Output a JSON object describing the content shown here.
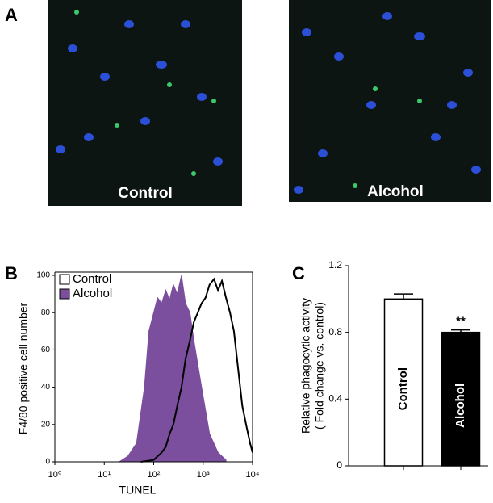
{
  "panel_labels": [
    "A",
    "B",
    "C"
  ],
  "images": [
    {
      "label": "Control"
    },
    {
      "label": "Alcohol"
    }
  ],
  "chart_data": [
    {
      "type": "histogram-line",
      "ylabel": "F4/80 positive cell number",
      "xlabel": "TUNEL",
      "xlog": true,
      "xlim": [
        1,
        10000
      ],
      "xticks": [
        {
          "value": 1,
          "label": "10⁰"
        },
        {
          "value": 10,
          "label": "10¹"
        },
        {
          "value": 100,
          "label": "10²"
        },
        {
          "value": 1000,
          "label": "10³"
        },
        {
          "value": 10000,
          "label": "10⁴"
        }
      ],
      "ylim": [
        0,
        100
      ],
      "yticks": [
        0,
        20,
        40,
        60,
        80,
        100
      ],
      "legend": "upper-left",
      "series": [
        {
          "name": "Control",
          "color": "#000000",
          "fill": "none",
          "x": [
            55,
            100,
            145,
            175,
            210,
            250,
            300,
            365,
            440,
            540,
            650,
            780,
            930,
            1120,
            1350,
            1660,
            2000,
            2400,
            2900,
            3500,
            4200,
            5100,
            6200,
            7400,
            8900,
            10000
          ],
          "values": [
            0,
            1,
            5,
            8,
            15,
            20,
            30,
            40,
            55,
            65,
            75,
            80,
            85,
            88,
            95,
            98,
            92,
            97,
            88,
            80,
            70,
            50,
            30,
            20,
            10,
            5
          ]
        },
        {
          "name": "Alcohol",
          "color": "#7b4f9d",
          "fill": "#7b4f9d",
          "x": [
            20,
            30,
            45,
            65,
            80,
            100,
            120,
            145,
            175,
            210,
            250,
            300,
            365,
            440,
            540,
            650,
            930,
            1350,
            2000,
            2900
          ],
          "values": [
            0,
            3,
            10,
            40,
            70,
            80,
            88,
            85,
            92,
            87,
            95,
            90,
            100,
            85,
            80,
            65,
            40,
            15,
            5,
            1
          ]
        }
      ]
    },
    {
      "type": "bar",
      "ylabel": [
        "Relative phagocytic activity",
        "( Fold change vs. control)"
      ],
      "categories": [
        "Control",
        "Alcohol"
      ],
      "values": [
        1.0,
        0.8
      ],
      "errors": [
        0.03,
        0.015
      ],
      "colors": [
        "#ffffff",
        "#000000"
      ],
      "annotation": "**",
      "ylim": [
        0,
        1.2
      ],
      "yticks": [
        0,
        0.4,
        0.8,
        1.2
      ]
    }
  ]
}
